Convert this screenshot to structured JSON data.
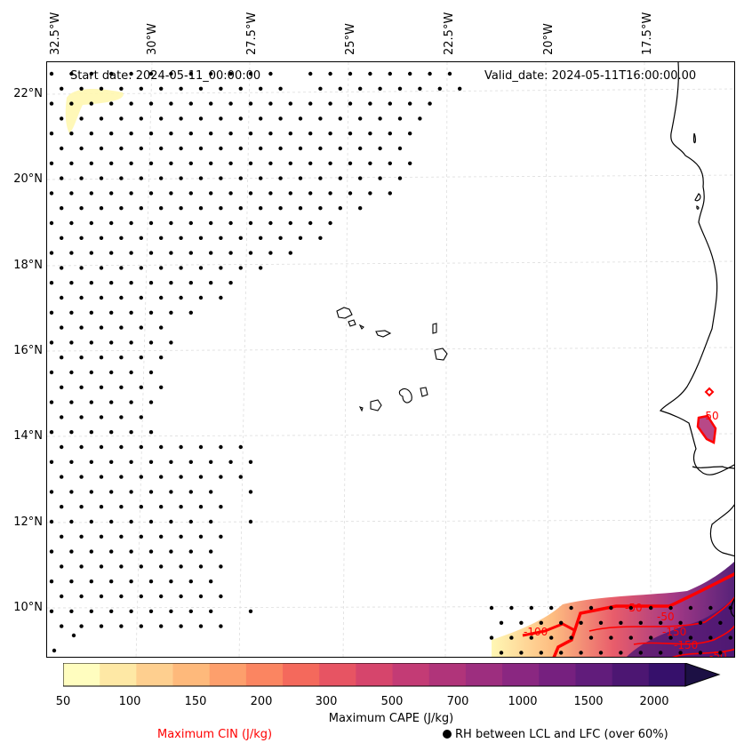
{
  "map": {
    "start_date": "Start date: 2024-05-11_00:00:00",
    "valid_date": "Valid_date: 2024-05-11T16:00:00.00",
    "lon_labels": [
      "32.5°W",
      "30°W",
      "27.5°W",
      "25°W",
      "22.5°W",
      "20°W",
      "17.5°W"
    ],
    "lat_labels": [
      "22°N",
      "20°N",
      "18°N",
      "16°N",
      "14°N",
      "12°N",
      "10°N"
    ],
    "contour_labels": [
      "-50",
      "-50",
      "-50",
      "-100",
      "-150",
      "-150",
      "-50"
    ]
  },
  "colorbar": {
    "title": "Maximum CAPE (J/kg)",
    "ticks": [
      "50",
      "100",
      "150",
      "200",
      "300",
      "500",
      "700",
      "1000",
      "1500",
      "2000"
    ],
    "colors": [
      "#fffdbf",
      "#fee8a5",
      "#fecf8f",
      "#feb97b",
      "#fd9f6c",
      "#fb8561",
      "#f4695c",
      "#e75463",
      "#d6456c",
      "#c33b75",
      "#b0347a",
      "#9d2e7f",
      "#8a2781",
      "#76207f",
      "#611c7b",
      "#4c1672",
      "#36106b",
      "#1c1044"
    ]
  },
  "legend": {
    "cin_label": "Maximum CIN (J/kg)",
    "rh_label": "RH between LCL and LFC (over 60%)",
    "cin_color": "#ff0000"
  }
}
